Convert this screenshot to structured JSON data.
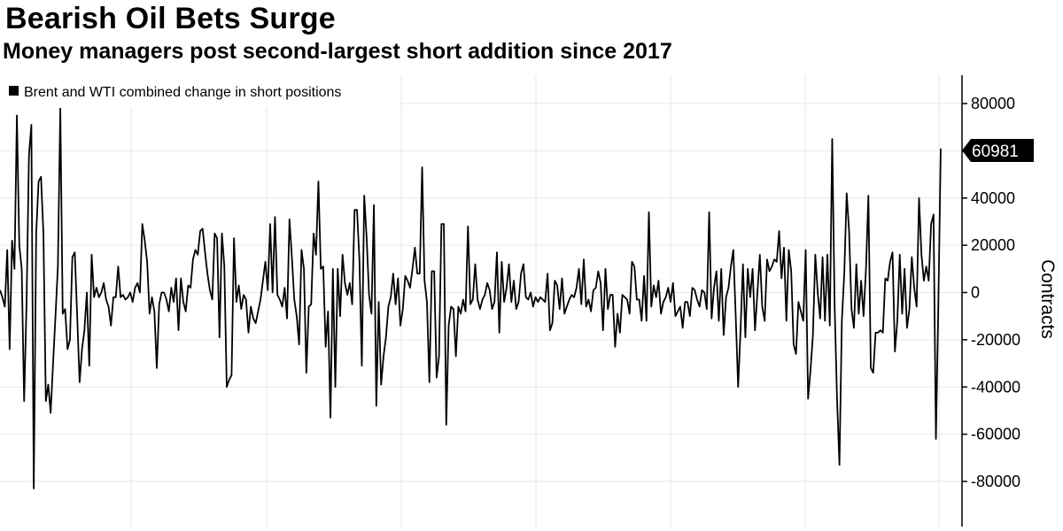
{
  "chart_data": {
    "type": "line",
    "title": "Bearish Oil Bets Surge",
    "subtitle": "Money managers post second-largest short addition since 2017",
    "ylabel": "Contracts",
    "ylim": [
      -92000,
      92000
    ],
    "yticks": [
      80000,
      60000,
      40000,
      20000,
      0,
      -20000,
      -40000,
      -60000,
      -80000
    ],
    "grid": true,
    "legend_position": "top-left",
    "last_value_label": "60981",
    "series": [
      {
        "name": "Brent and WTI combined change in short positions",
        "color": "#000000",
        "values": [
          1000,
          -2000,
          -6000,
          18000,
          -24000,
          22000,
          10000,
          75000,
          20000,
          10000,
          -46000,
          -5000,
          58000,
          71000,
          -83000,
          25000,
          47000,
          49000,
          25000,
          -46000,
          -39000,
          -51000,
          -30000,
          -10000,
          11000,
          78000,
          -9000,
          -7000,
          -24000,
          -20000,
          15000,
          17000,
          -10000,
          -38000,
          -24000,
          -16000,
          0,
          -31000,
          16000,
          -2000,
          2000,
          -2000,
          0,
          4000,
          -3000,
          -6000,
          -14000,
          -2000,
          -2000,
          11000,
          -2000,
          -1000,
          -3000,
          -2000,
          0,
          -4000,
          2000,
          4000,
          0,
          29000,
          22000,
          13000,
          -9000,
          -2000,
          -8000,
          -32000,
          -5000,
          0,
          0,
          -3000,
          -8000,
          2000,
          -4000,
          6000,
          -16000,
          6000,
          -4000,
          -8000,
          3000,
          2000,
          14000,
          18000,
          16000,
          26000,
          27000,
          17000,
          8000,
          1000,
          -3000,
          25000,
          23000,
          -19000,
          25000,
          11000,
          -40000,
          -37000,
          -35000,
          23000,
          -4000,
          3000,
          -7000,
          -1000,
          -3000,
          -17000,
          -6000,
          -11000,
          -13000,
          -8000,
          -3000,
          5000,
          13000,
          1000,
          29000,
          0,
          32000,
          -1000,
          -3000,
          -6000,
          2000,
          -11000,
          31000,
          15000,
          -3000,
          -10000,
          -22000,
          18000,
          10000,
          -34000,
          -6000,
          -5000,
          25000,
          16000,
          47000,
          10000,
          11000,
          -23000,
          -8000,
          -53000,
          10000,
          -40000,
          10000,
          -10000,
          16000,
          4000,
          -1000,
          4000,
          -5000,
          35000,
          35000,
          14000,
          -31000,
          41000,
          23000,
          -1000,
          -9000,
          37000,
          -48000,
          -4000,
          -39000,
          -27000,
          -19000,
          -6000,
          -2000,
          8000,
          -5000,
          6000,
          -14000,
          -7000,
          7000,
          5000,
          2000,
          10000,
          19000,
          8000,
          8000,
          53000,
          5000,
          -4000,
          -38000,
          9000,
          9000,
          -36000,
          -27000,
          29000,
          29000,
          -56000,
          -14000,
          -6000,
          -7000,
          -27000,
          -6000,
          -9000,
          -3000,
          -8000,
          28000,
          -5000,
          -3000,
          12000,
          -3000,
          -7000,
          -3000,
          -1000,
          4000,
          1000,
          -7000,
          -4000,
          17000,
          -17000,
          13000,
          -4000,
          2000,
          12000,
          -4000,
          5000,
          -7000,
          -4000,
          8000,
          12000,
          -2000,
          -3000,
          0,
          -6000,
          -2000,
          -4000,
          -2000,
          -3000,
          -4000,
          8000,
          -16000,
          -13000,
          5000,
          3000,
          -7000,
          6000,
          -9000,
          -6000,
          -3000,
          -1000,
          -2000,
          2000,
          10000,
          -5000,
          14000,
          -6000,
          -3000,
          -8000,
          1000,
          2000,
          9000,
          4000,
          -16000,
          10000,
          -7000,
          -1000,
          -1000,
          -23000,
          -9000,
          -17000,
          -1000,
          -2000,
          -3000,
          -9000,
          13000,
          11000,
          -3000,
          -3000,
          -12000,
          7000,
          -12000,
          34000,
          -6000,
          3000,
          -2000,
          5000,
          -9000,
          -4000,
          -2000,
          2000,
          -4000,
          4000,
          -10000,
          -8000,
          -6000,
          -15000,
          -4000,
          -4000,
          -10000,
          2000,
          1000,
          -3000,
          -6000,
          1000,
          0,
          -7000,
          34000,
          -11000,
          2000,
          9000,
          -12000,
          10000,
          -18000,
          -2000,
          2000,
          11000,
          18000,
          -10000,
          -40000,
          -16000,
          12000,
          -19000,
          10000,
          -2000,
          10000,
          -16000,
          0,
          16000,
          -6000,
          -12000,
          14000,
          9000,
          11000,
          14000,
          13000,
          26000,
          6000,
          19000,
          -12000,
          18000,
          9000,
          -22000,
          -26000,
          -4000,
          -8000,
          -12000,
          18000,
          -45000,
          -33000,
          -18000,
          16000,
          0,
          -11000,
          15000,
          -12000,
          16000,
          -14000,
          65000,
          -5000,
          -45000,
          -73000,
          -12000,
          8000,
          42000,
          26000,
          -7000,
          -15000,
          12000,
          -9000,
          5000,
          -10000,
          10000,
          41000,
          -32000,
          -34000,
          -17000,
          -17000,
          -16000,
          -17000,
          6000,
          5000,
          13000,
          17000,
          -25000,
          -12000,
          16000,
          -9000,
          10000,
          -15000,
          -7000,
          15000,
          2000,
          -6000,
          40000,
          16000,
          5000,
          11000,
          5000,
          29000,
          33000,
          -62000,
          -5000,
          60981
        ]
      }
    ]
  }
}
